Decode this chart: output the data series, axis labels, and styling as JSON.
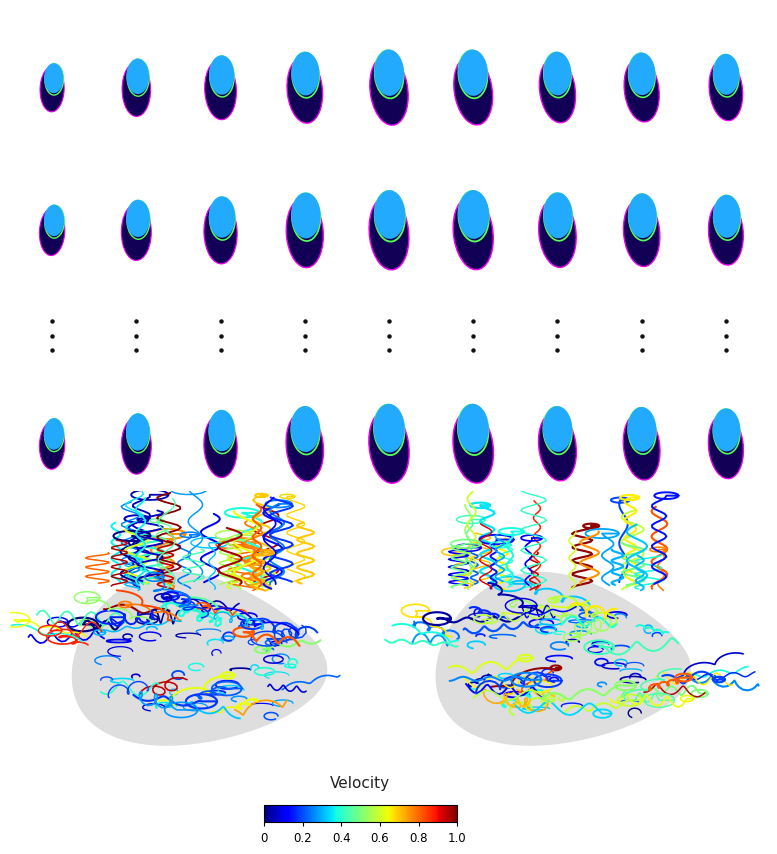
{
  "background_color": "#ffffff",
  "colorbar_label": "Velocity",
  "colorbar_ticks": [
    0,
    0.2,
    0.4,
    0.6,
    0.8,
    1.0
  ],
  "colorbar_ticklabels": [
    "0",
    "0.2",
    "0.4",
    "0.6",
    "0.8",
    "1.0"
  ],
  "heart_outer_color": "#ee00ee",
  "heart_inner_color": "#110055",
  "heart_outline_color": "#55ff55",
  "heart_blue_color": "#22aaff",
  "dots_color": "#111111",
  "gray_heart_color": "#d8d8d8",
  "gray_heart_edge": "#b0b0b0",
  "n_cols": 9,
  "slice_sizes": [
    0.55,
    0.65,
    0.72,
    0.8,
    0.85,
    0.85,
    0.8,
    0.78,
    0.75
  ],
  "slice_rotations_row1": [
    -5,
    2,
    8,
    14,
    20,
    24,
    22,
    20,
    18
  ],
  "slice_rotations_row2": [
    -8,
    0,
    5,
    10,
    15,
    18,
    16,
    14,
    12
  ],
  "slice_rotations_row3": [
    -5,
    2,
    8,
    15,
    20,
    22,
    20,
    18,
    15
  ]
}
